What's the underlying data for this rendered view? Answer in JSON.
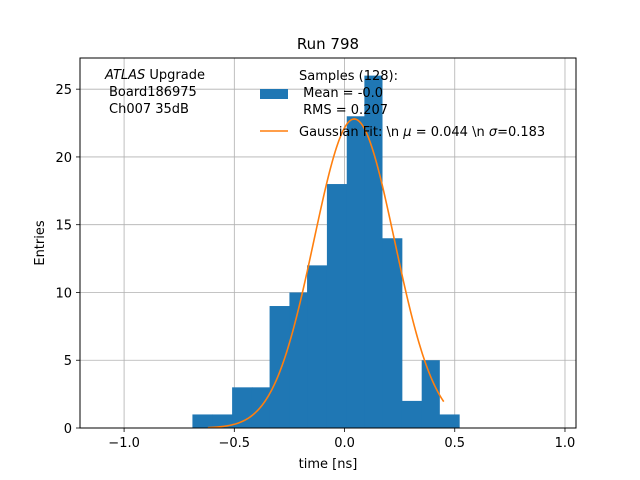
{
  "chart_data": {
    "type": "bar",
    "title": "Run 798",
    "xlabel": "time [ns]",
    "ylabel": "Entries",
    "xlim": [
      -1.2,
      1.05
    ],
    "ylim": [
      0,
      27.3
    ],
    "grid": true,
    "x_ticks": [
      -1.0,
      -0.5,
      0.0,
      0.5,
      1.0
    ],
    "x_tick_labels": [
      "−1.0",
      "−0.5",
      "0.0",
      "0.5",
      "1.0"
    ],
    "y_ticks": [
      0,
      5,
      10,
      15,
      20,
      25
    ],
    "y_tick_labels": [
      "0",
      "5",
      "10",
      "15",
      "20",
      "25"
    ],
    "histogram": {
      "name": "Samples (128):",
      "color": "#1f77b4",
      "bins": [
        {
          "lo": -0.69,
          "hi": -0.6,
          "count": 1
        },
        {
          "lo": -0.6,
          "hi": -0.51,
          "count": 1
        },
        {
          "lo": -0.51,
          "hi": -0.42,
          "count": 3
        },
        {
          "lo": -0.42,
          "hi": -0.34,
          "count": 3
        },
        {
          "lo": -0.34,
          "hi": -0.25,
          "count": 9
        },
        {
          "lo": -0.25,
          "hi": -0.17,
          "count": 10
        },
        {
          "lo": -0.17,
          "hi": -0.08,
          "count": 12
        },
        {
          "lo": -0.08,
          "hi": 0.01,
          "count": 18
        },
        {
          "lo": 0.01,
          "hi": 0.09,
          "count": 23
        },
        {
          "lo": 0.09,
          "hi": 0.17,
          "count": 26
        },
        {
          "lo": 0.17,
          "hi": 0.26,
          "count": 14
        },
        {
          "lo": 0.26,
          "hi": 0.35,
          "count": 2
        },
        {
          "lo": 0.35,
          "hi": 0.43,
          "count": 5
        },
        {
          "lo": 0.43,
          "hi": 0.52,
          "count": 1
        }
      ]
    },
    "gaussian_fit": {
      "name": "Gaussian Fit: \\n $\\mu$ = 0.044 \\n $\\sigma$=0.183",
      "color": "#ff7f0e",
      "mu": 0.044,
      "sigma": 0.183,
      "amplitude": 22.8,
      "x_range": [
        -0.62,
        0.45
      ]
    },
    "annotation": {
      "atlas": "ATLAS",
      "line1_rest": " Upgrade",
      "line2": "Board186975",
      "line3": "Ch007 35dB"
    },
    "legend": {
      "placement": "top-right",
      "hist_line1": "Samples (128):",
      "hist_line2": " Mean = -0.0",
      "hist_line3": " RMS = 0.207",
      "fit_prefix": "Gaussian Fit: \\n ",
      "fit_mu": "μ",
      "fit_mid": " = 0.044 \\n ",
      "fit_sigma": "σ",
      "fit_suffix": "=0.183"
    }
  }
}
